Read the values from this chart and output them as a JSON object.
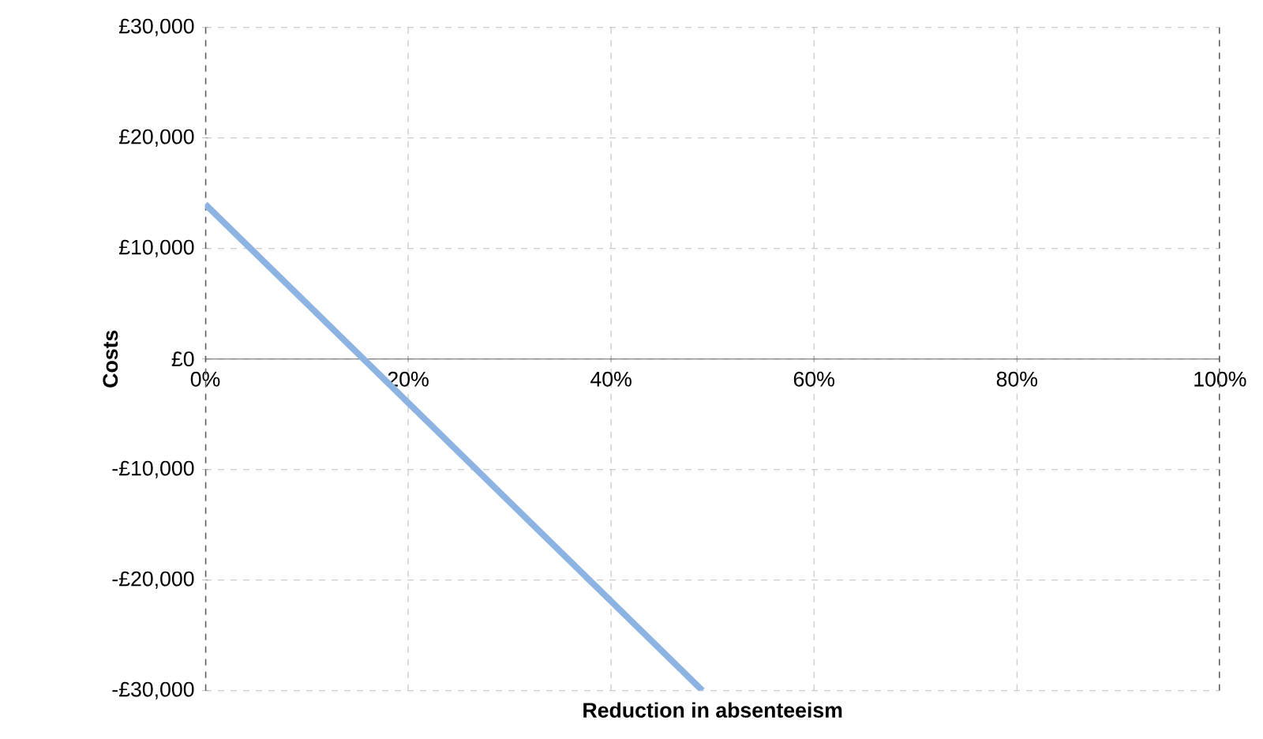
{
  "chart_data": {
    "type": "line",
    "xlabel": "Reduction in absenteeism",
    "ylabel": "Costs",
    "series": [
      {
        "color": "#8db3e2",
        "x": [
          0,
          49
        ],
        "values": [
          14000,
          -30000
        ]
      }
    ],
    "xlim": [
      0,
      100
    ],
    "ylim": [
      -30000,
      30000
    ],
    "xticks": [
      {
        "value": 0,
        "label": "0%"
      },
      {
        "value": 20,
        "label": "20%"
      },
      {
        "value": 40,
        "label": "40%"
      },
      {
        "value": 60,
        "label": "60%"
      },
      {
        "value": 80,
        "label": "80%"
      },
      {
        "value": 100,
        "label": "100%"
      }
    ],
    "yticks": [
      {
        "value": -30000,
        "label": "-£30,000"
      },
      {
        "value": -20000,
        "label": "-£20,000"
      },
      {
        "value": -10000,
        "label": "-£10,000"
      },
      {
        "value": 0,
        "label": "£0"
      },
      {
        "value": 10000,
        "label": "£10,000"
      },
      {
        "value": 20000,
        "label": "£20,000"
      },
      {
        "value": 30000,
        "label": "£30,000"
      }
    ],
    "grid": true,
    "marker": "none",
    "line_style": "solid"
  }
}
